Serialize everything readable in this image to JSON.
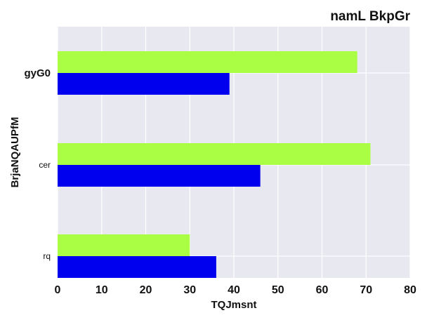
{
  "chart_data": {
    "type": "bar",
    "orientation": "horizontal",
    "title": "namL BkpGr",
    "xlabel": "TQJmsnt",
    "ylabel": "BrjaNQAUPfM",
    "categories": [
      "gyG0",
      "cer",
      "rq"
    ],
    "series": [
      {
        "color": "#aaff44",
        "values": [
          68,
          71,
          30
        ]
      },
      {
        "color": "#0000ee",
        "values": [
          39,
          46,
          36
        ]
      }
    ],
    "xlim": [
      0,
      80
    ],
    "xticks": [
      "0",
      "10",
      "20",
      "30",
      "40",
      "50",
      "60",
      "70",
      "80"
    ],
    "grid": true,
    "legend": "none",
    "colors": {
      "plot_background": "#e8e8f0",
      "grid": "#ffffff"
    }
  }
}
